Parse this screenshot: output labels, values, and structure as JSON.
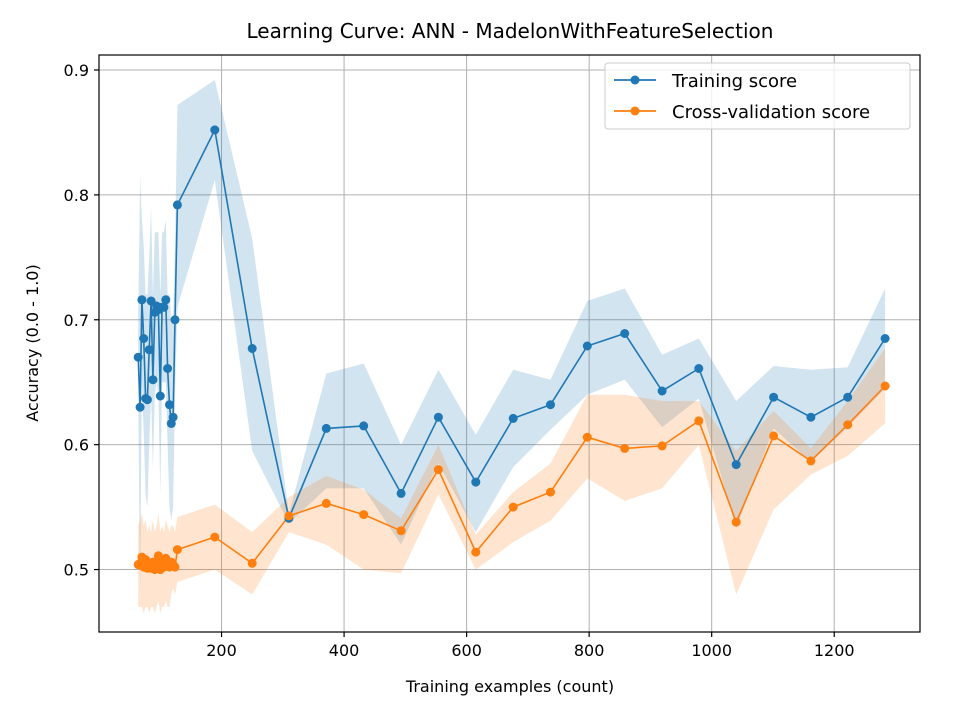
{
  "chart_data": {
    "type": "line",
    "title": "Learning Curve: ANN - MadelonWithFeatureSelection",
    "xlabel": "Training examples (count)",
    "ylabel": "Accuracy (0.0 - 1.0)",
    "xlim": [
      0,
      1340
    ],
    "ylim": [
      0.45,
      0.912
    ],
    "xticks": [
      200,
      400,
      600,
      800,
      1000,
      1200
    ],
    "yticks": [
      0.5,
      0.6,
      0.7,
      0.8,
      0.9
    ],
    "xtick_labels": [
      "200",
      "400",
      "600",
      "800",
      "1000",
      "1200"
    ],
    "ytick_labels": [
      "0.5",
      "0.6",
      "0.7",
      "0.8",
      "0.9"
    ],
    "grid": true,
    "legend_position": "top-right",
    "series": [
      {
        "name": "Training score",
        "color": "#1f77b4",
        "band_color": "#1f77b4",
        "x": [
          64,
          67,
          70,
          73,
          76,
          79,
          82,
          85,
          88,
          91,
          94,
          97,
          100,
          103,
          106,
          109,
          112,
          115,
          118,
          121,
          124,
          128,
          189,
          250,
          310,
          371,
          432,
          493,
          554,
          615,
          676,
          737,
          797,
          858,
          919,
          979,
          1040,
          1101,
          1162,
          1222,
          1283
        ],
        "y": [
          0.67,
          0.63,
          0.716,
          0.685,
          0.637,
          0.636,
          0.676,
          0.715,
          0.652,
          0.706,
          0.711,
          0.708,
          0.639,
          0.71,
          0.71,
          0.716,
          0.661,
          0.632,
          0.617,
          0.622,
          0.7,
          0.792,
          0.852,
          0.677,
          0.541,
          0.613,
          0.615,
          0.561,
          0.622,
          0.57,
          0.621,
          0.632,
          0.679,
          0.689,
          0.643,
          0.661,
          0.584,
          0.638,
          0.622,
          0.638,
          0.685
        ],
        "upper": [
          0.7,
          0.815,
          0.78,
          0.76,
          0.72,
          0.72,
          0.75,
          0.79,
          0.72,
          0.77,
          0.77,
          0.77,
          0.72,
          0.77,
          0.77,
          0.78,
          0.72,
          0.72,
          0.7,
          0.7,
          0.76,
          0.872,
          0.892,
          0.765,
          0.545,
          0.657,
          0.665,
          0.6,
          0.66,
          0.608,
          0.66,
          0.652,
          0.715,
          0.725,
          0.672,
          0.685,
          0.635,
          0.663,
          0.66,
          0.662,
          0.725
        ],
        "lower": [
          0.64,
          0.48,
          0.65,
          0.61,
          0.56,
          0.55,
          0.6,
          0.64,
          0.58,
          0.64,
          0.65,
          0.64,
          0.56,
          0.65,
          0.65,
          0.65,
          0.6,
          0.55,
          0.54,
          0.55,
          0.64,
          0.71,
          0.812,
          0.595,
          0.537,
          0.565,
          0.565,
          0.52,
          0.585,
          0.53,
          0.582,
          0.612,
          0.64,
          0.652,
          0.614,
          0.637,
          0.533,
          0.613,
          0.586,
          0.614,
          0.645
        ]
      },
      {
        "name": "Cross-validation score",
        "color": "#ff7f0e",
        "band_color": "#ff7f0e",
        "x": [
          64,
          67,
          70,
          73,
          76,
          79,
          82,
          85,
          88,
          91,
          94,
          97,
          100,
          103,
          106,
          109,
          112,
          115,
          118,
          121,
          124,
          128,
          189,
          250,
          310,
          371,
          432,
          493,
          554,
          615,
          676,
          737,
          797,
          858,
          919,
          979,
          1040,
          1101,
          1162,
          1222,
          1283
        ],
        "y": [
          0.504,
          0.505,
          0.51,
          0.502,
          0.508,
          0.501,
          0.503,
          0.501,
          0.506,
          0.5,
          0.505,
          0.511,
          0.5,
          0.506,
          0.502,
          0.509,
          0.505,
          0.502,
          0.506,
          0.504,
          0.502,
          0.516,
          0.526,
          0.505,
          0.543,
          0.553,
          0.544,
          0.531,
          0.58,
          0.514,
          0.55,
          0.562,
          0.606,
          0.597,
          0.599,
          0.619,
          0.538,
          0.607,
          0.587,
          0.616,
          0.647
        ],
        "upper": [
          0.535,
          0.54,
          0.545,
          0.535,
          0.54,
          0.53,
          0.535,
          0.53,
          0.54,
          0.53,
          0.535,
          0.545,
          0.53,
          0.535,
          0.53,
          0.54,
          0.535,
          0.53,
          0.535,
          0.535,
          0.53,
          0.542,
          0.552,
          0.53,
          0.558,
          0.575,
          0.564,
          0.541,
          0.6,
          0.528,
          0.562,
          0.585,
          0.64,
          0.64,
          0.635,
          0.635,
          0.595,
          0.627,
          0.597,
          0.635,
          0.677
        ],
        "lower": [
          0.47,
          0.47,
          0.47,
          0.465,
          0.47,
          0.47,
          0.465,
          0.47,
          0.47,
          0.465,
          0.47,
          0.475,
          0.465,
          0.47,
          0.47,
          0.475,
          0.47,
          0.47,
          0.48,
          0.485,
          0.48,
          0.49,
          0.5,
          0.48,
          0.53,
          0.52,
          0.5,
          0.497,
          0.56,
          0.5,
          0.522,
          0.539,
          0.573,
          0.555,
          0.565,
          0.6,
          0.48,
          0.548,
          0.576,
          0.591,
          0.617
        ]
      }
    ]
  }
}
